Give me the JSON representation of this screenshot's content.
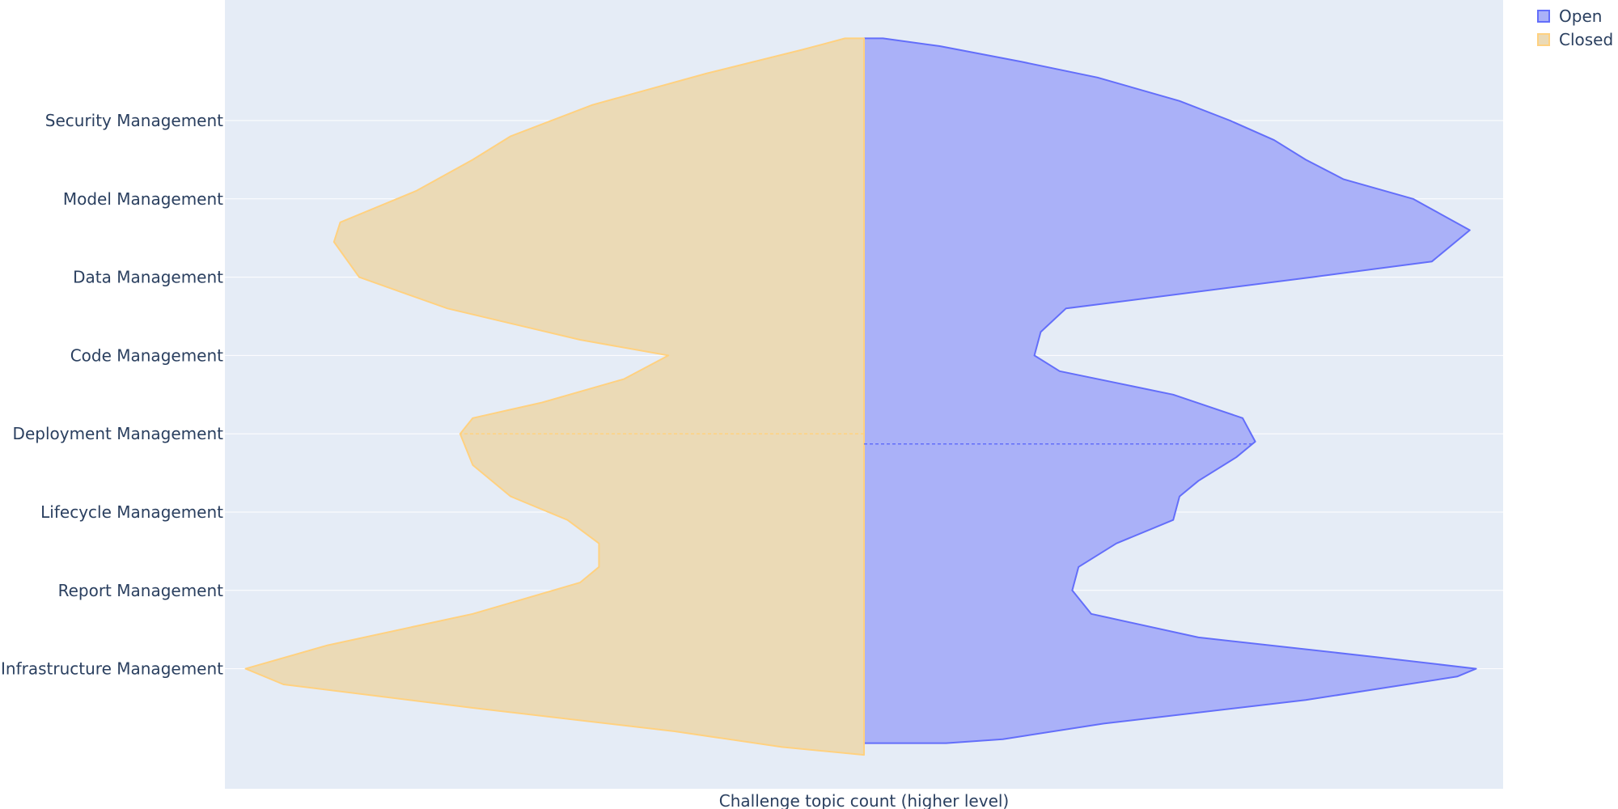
{
  "chart_data": {
    "type": "violin",
    "xlabel": "Challenge topic count (higher level)",
    "categories": [
      "Security Management",
      "Model Management",
      "Data Management",
      "Code Management",
      "Deployment Management",
      "Lifecycle Management",
      "Report Management",
      "Infrastructure Management"
    ],
    "grid": true,
    "legend": {
      "placement": "top-right"
    },
    "series": [
      {
        "name": "Open",
        "side": "positive",
        "color": "#636efa",
        "fill": "#aab1f8",
        "mean_position": 4.13,
        "density": [
          [
            -1.05,
            0.0
          ],
          [
            -1.05,
            0.03
          ],
          [
            -0.95,
            0.12
          ],
          [
            -0.75,
            0.25
          ],
          [
            -0.55,
            0.37
          ],
          [
            -0.25,
            0.5
          ],
          [
            0.0,
            0.58
          ],
          [
            0.25,
            0.65
          ],
          [
            0.5,
            0.7
          ],
          [
            0.75,
            0.76
          ],
          [
            1.0,
            0.87
          ],
          [
            1.4,
            0.96
          ],
          [
            1.8,
            0.9
          ],
          [
            2.0,
            0.71
          ],
          [
            2.4,
            0.32
          ],
          [
            2.7,
            0.28
          ],
          [
            3.0,
            0.27
          ],
          [
            3.2,
            0.31
          ],
          [
            3.5,
            0.49
          ],
          [
            3.8,
            0.6
          ],
          [
            4.1,
            0.62
          ],
          [
            4.3,
            0.59
          ],
          [
            4.6,
            0.53
          ],
          [
            4.8,
            0.5
          ],
          [
            5.1,
            0.49
          ],
          [
            5.4,
            0.4
          ],
          [
            5.7,
            0.34
          ],
          [
            6.0,
            0.33
          ],
          [
            6.3,
            0.36
          ],
          [
            6.6,
            0.53
          ],
          [
            6.85,
            0.81
          ],
          [
            7.0,
            0.97
          ],
          [
            7.1,
            0.94
          ],
          [
            7.4,
            0.7
          ],
          [
            7.7,
            0.38
          ],
          [
            7.9,
            0.22
          ],
          [
            7.95,
            0.13
          ],
          [
            7.95,
            0.0
          ]
        ]
      },
      {
        "name": "Closed",
        "side": "negative",
        "color": "#ffd180",
        "fill": "#ebdab6",
        "mean_position": 4.0,
        "density": [
          [
            -1.05,
            0.0
          ],
          [
            -1.05,
            0.03
          ],
          [
            -0.9,
            0.1
          ],
          [
            -0.6,
            0.25
          ],
          [
            -0.2,
            0.43
          ],
          [
            0.2,
            0.56
          ],
          [
            0.5,
            0.62
          ],
          [
            0.9,
            0.71
          ],
          [
            1.3,
            0.83
          ],
          [
            1.55,
            0.84
          ],
          [
            2.0,
            0.8
          ],
          [
            2.4,
            0.66
          ],
          [
            2.8,
            0.45
          ],
          [
            3.0,
            0.31
          ],
          [
            3.3,
            0.38
          ],
          [
            3.6,
            0.51
          ],
          [
            3.8,
            0.62
          ],
          [
            4.0,
            0.64
          ],
          [
            4.4,
            0.62
          ],
          [
            4.8,
            0.56
          ],
          [
            5.1,
            0.47
          ],
          [
            5.4,
            0.42
          ],
          [
            5.7,
            0.42
          ],
          [
            5.9,
            0.45
          ],
          [
            6.3,
            0.62
          ],
          [
            6.7,
            0.85
          ],
          [
            7.0,
            0.98
          ],
          [
            7.2,
            0.92
          ],
          [
            7.5,
            0.62
          ],
          [
            7.8,
            0.3
          ],
          [
            8.0,
            0.13
          ],
          [
            8.1,
            0.0
          ]
        ]
      }
    ]
  }
}
